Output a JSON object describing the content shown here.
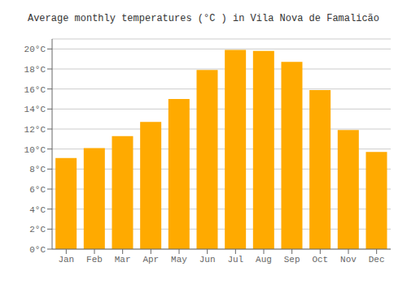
{
  "chart_data": {
    "type": "bar",
    "title": "Average monthly temperatures (°C ) in Vila Nova de Famalicão",
    "categories": [
      "Jan",
      "Feb",
      "Mar",
      "Apr",
      "May",
      "Jun",
      "Jul",
      "Aug",
      "Sep",
      "Oct",
      "Nov",
      "Dec"
    ],
    "values": [
      9.1,
      10.1,
      11.3,
      12.7,
      15.0,
      17.9,
      19.9,
      19.8,
      18.7,
      15.9,
      11.9,
      9.7
    ],
    "color": "#FFAA00",
    "ylim": [
      0,
      21
    ],
    "yticks": [
      {
        "value": 0,
        "label": "0°C"
      },
      {
        "value": 2,
        "label": "2°C"
      },
      {
        "value": 4,
        "label": "4°C"
      },
      {
        "value": 6,
        "label": "6°C"
      },
      {
        "value": 8,
        "label": "8°C"
      },
      {
        "value": 10,
        "label": "10°C"
      },
      {
        "value": 12,
        "label": "12°C"
      },
      {
        "value": 14,
        "label": "14°C"
      },
      {
        "value": 16,
        "label": "16°C"
      },
      {
        "value": 18,
        "label": "18°C"
      },
      {
        "value": 20,
        "label": "20°C"
      }
    ],
    "grid": true
  }
}
